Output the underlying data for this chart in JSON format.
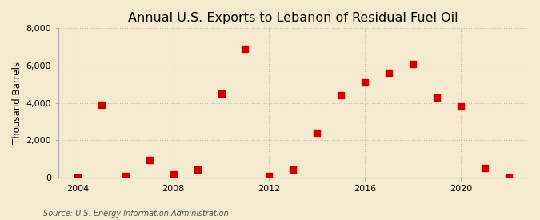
{
  "title": "Annual U.S. Exports to Lebanon of Residual Fuel Oil",
  "ylabel": "Thousand Barrels",
  "source_text": "Source: U.S. Energy Information Administration",
  "years": [
    2004,
    2005,
    2006,
    2007,
    2008,
    2009,
    2010,
    2011,
    2012,
    2013,
    2014,
    2015,
    2016,
    2017,
    2018,
    2019,
    2020,
    2021,
    2022
  ],
  "values": [
    0,
    3900,
    60,
    950,
    180,
    400,
    4500,
    6900,
    60,
    400,
    2400,
    4400,
    5100,
    5600,
    6100,
    4300,
    3800,
    500,
    0
  ],
  "marker_color": "#cc0000",
  "marker_size": 28,
  "background_color": "#f5e9d0",
  "grid_color": "#bbbbbb",
  "ylim": [
    0,
    8000
  ],
  "yticks": [
    0,
    2000,
    4000,
    6000,
    8000
  ],
  "xticks": [
    2004,
    2008,
    2012,
    2016,
    2020
  ],
  "xlim": [
    2003.2,
    2022.8
  ],
  "title_fontsize": 11.5,
  "label_fontsize": 8.5,
  "tick_fontsize": 8,
  "source_fontsize": 7
}
